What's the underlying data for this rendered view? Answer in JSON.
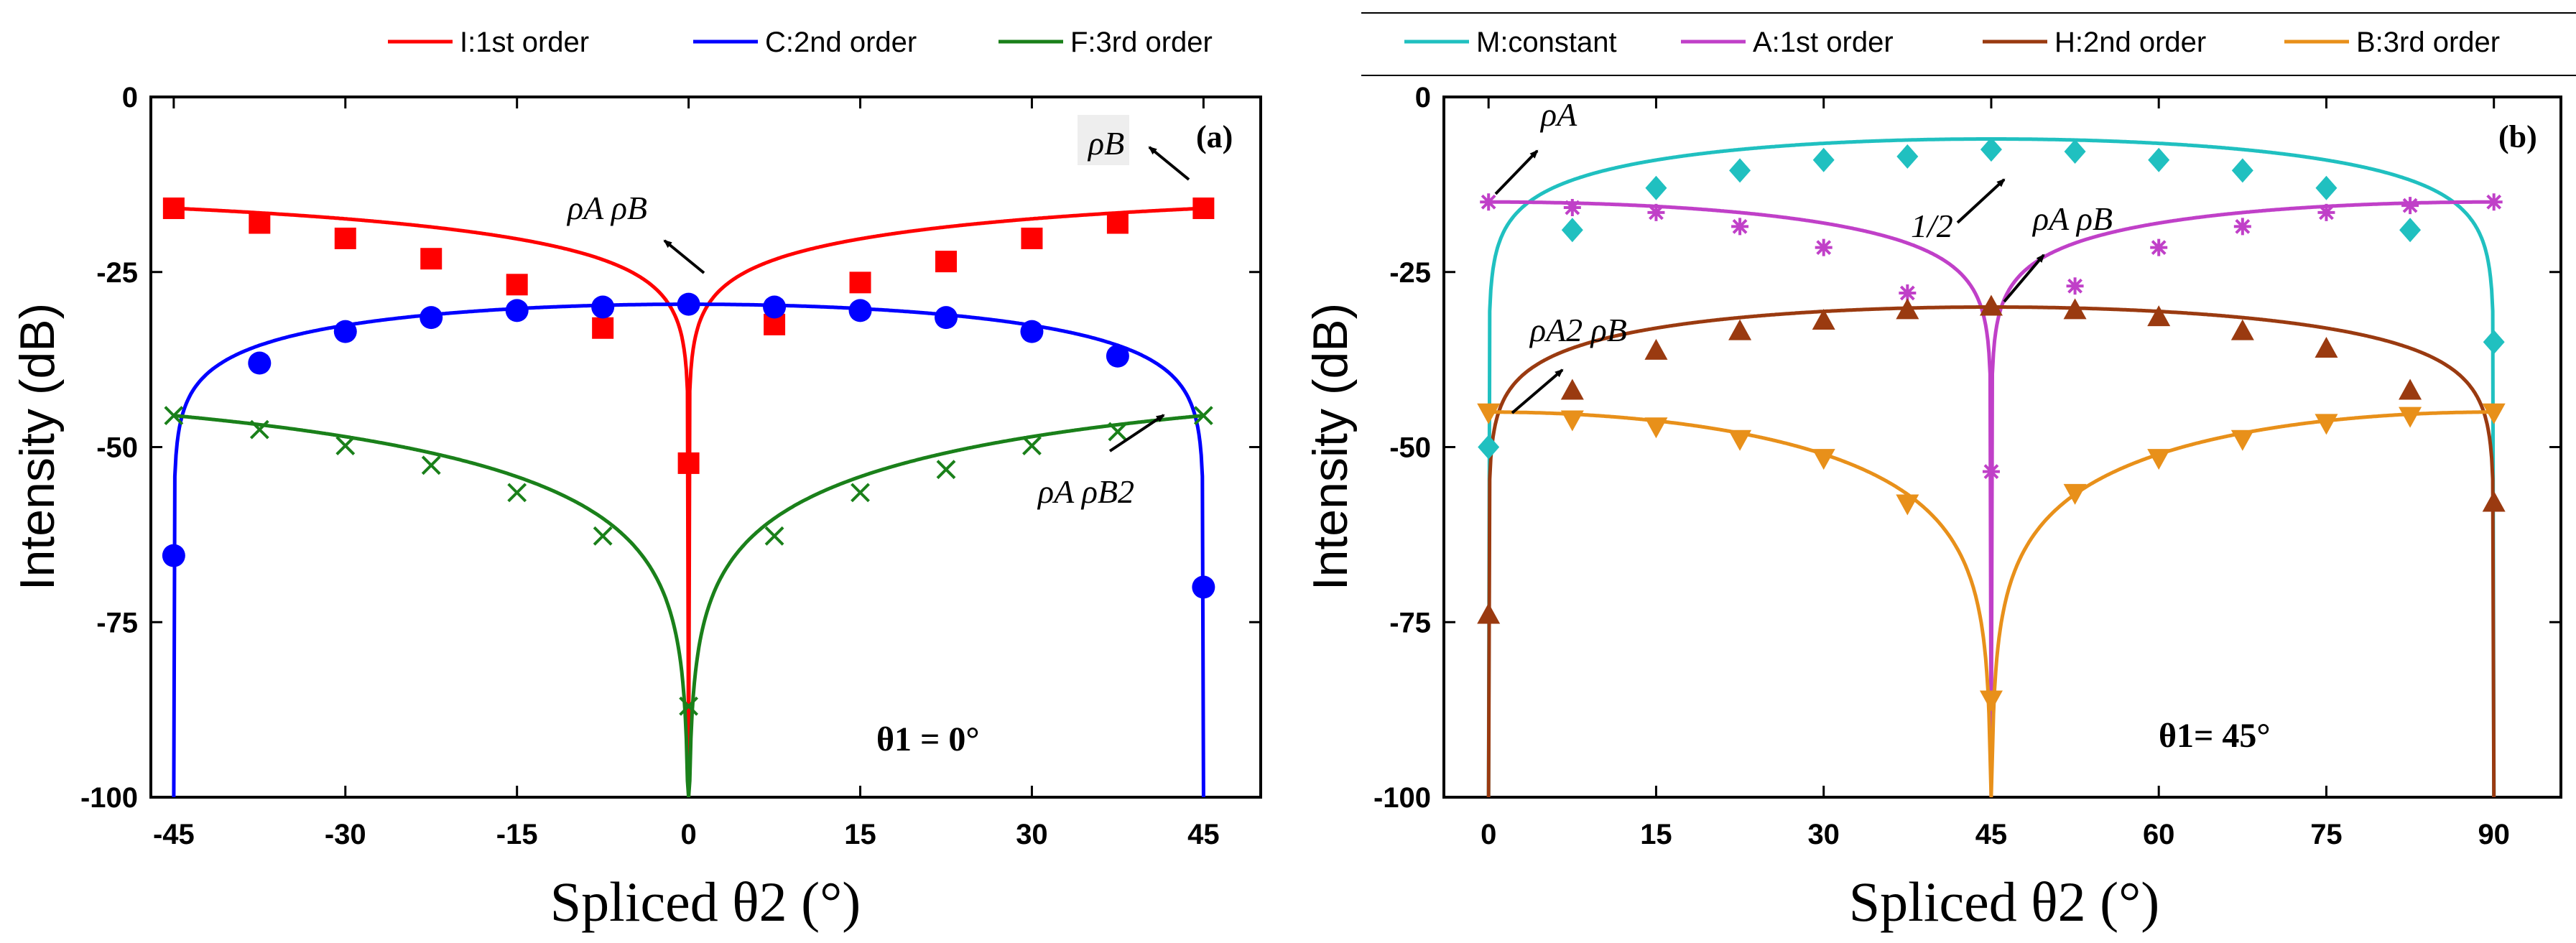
{
  "chart_data": [
    {
      "panel": "(a)",
      "type": "line",
      "xlabel": "Spliced θ2 (°)",
      "ylabel": "Intensity (dB)",
      "xlim": [
        -47,
        50
      ],
      "ylim": [
        -100,
        0
      ],
      "xticks": [
        "-45",
        "-30",
        "-15",
        "0",
        "15",
        "30",
        "45"
      ],
      "yticks": [
        "0",
        "-25",
        "-50",
        "-75",
        "-100"
      ],
      "xtick_values": [
        -45,
        -30,
        -15,
        0,
        15,
        30,
        45
      ],
      "ytick_values": [
        0,
        -25,
        -50,
        -75,
        -100
      ],
      "condition": "θ1 = 0°",
      "annotations": [
        {
          "text": "ρA ρB",
          "x": 0,
          "y": -24
        },
        {
          "text": "ρB",
          "x": 40,
          "y": -8
        },
        {
          "text": "ρA ρB2",
          "x": 36,
          "y": -57
        }
      ],
      "series": [
        {
          "name": "I:1st order",
          "color": "#ff0000",
          "marker": "square",
          "func": "first",
          "x": [
            -45,
            -37.5,
            -30,
            -22.5,
            -15,
            -7.5,
            0,
            7.5,
            15,
            22.5,
            30,
            37.5,
            45
          ],
          "values": [
            -15.9,
            -18,
            -20.2,
            -23.1,
            -26.8,
            -33,
            -52.3,
            -32.5,
            -26.5,
            -23.5,
            -20.2,
            -18,
            -15.9
          ]
        },
        {
          "name": "C:2nd order",
          "color": "#0000ff",
          "marker": "circle",
          "func": "second",
          "x": [
            -45,
            -37.5,
            -30,
            -22.5,
            -15,
            -7.5,
            0,
            7.5,
            15,
            22.5,
            30,
            37.5,
            45
          ],
          "values": [
            -65.5,
            -38,
            -33.5,
            -31.5,
            -30.5,
            -30,
            -29.6,
            -30,
            -30.5,
            -31.5,
            -33.5,
            -37,
            -70
          ]
        },
        {
          "name": "F:3rd order",
          "color": "#1a801a",
          "marker": "x",
          "func": "third",
          "x": [
            -45,
            -37.5,
            -30,
            -22.5,
            -15,
            -7.5,
            0,
            7.5,
            15,
            22.5,
            30,
            37.5,
            45
          ],
          "values": [
            -45.5,
            -47.5,
            -49.8,
            -52.6,
            -56.5,
            -62.7,
            -87,
            -62.7,
            -56.5,
            -53.2,
            -49.8,
            -47.8,
            -45.5
          ]
        }
      ]
    },
    {
      "panel": "(b)",
      "type": "line",
      "xlabel": "Spliced θ2 (°)",
      "ylabel": "Intensity (dB)",
      "xlim": [
        -4,
        96
      ],
      "ylim": [
        -100,
        0
      ],
      "xticks": [
        "0",
        "15",
        "30",
        "45",
        "60",
        "75",
        "90"
      ],
      "yticks": [
        "0",
        "-25",
        "-50",
        "-75",
        "-100"
      ],
      "xtick_values": [
        0,
        15,
        30,
        45,
        60,
        75,
        90
      ],
      "ytick_values": [
        0,
        -25,
        -50,
        -75,
        -100
      ],
      "condition": "θ1= 45°",
      "annotations": [
        {
          "text": "ρA",
          "x": 5,
          "y": -5
        },
        {
          "text": "1/2",
          "x": 38,
          "y": -15
        },
        {
          "text": "ρA ρB",
          "x": 49,
          "y": -20
        },
        {
          "text": "ρA2 ρB",
          "x": 3,
          "y": -37
        }
      ],
      "series": [
        {
          "name": "M:constant",
          "color": "#20c0c0",
          "marker": "diamond",
          "func": "constant",
          "x": [
            0,
            7.5,
            15,
            22.5,
            30,
            37.5,
            45,
            52.5,
            60,
            67.5,
            75,
            82.5,
            90
          ],
          "values": [
            -50,
            -19,
            -13,
            -10.5,
            -9,
            -8.5,
            -7.5,
            -7.8,
            -9,
            -10.5,
            -13,
            -19,
            -35
          ]
        },
        {
          "name": "A:1st order",
          "color": "#c040c8",
          "marker": "asterisk",
          "func": "first",
          "x": [
            0,
            7.5,
            15,
            22.5,
            30,
            37.5,
            45,
            52.5,
            60,
            67.5,
            75,
            82.5,
            90
          ],
          "values": [
            -15,
            -15.8,
            -16.5,
            -18.5,
            -21.5,
            -28,
            -53.5,
            -27,
            -21.5,
            -18.5,
            -16.5,
            -15.5,
            -15
          ]
        },
        {
          "name": "H:2nd order",
          "color": "#9a3a10",
          "marker": "triangle-up",
          "func": "second",
          "x": [
            0,
            7.5,
            15,
            22.5,
            30,
            37.5,
            45,
            52.5,
            60,
            67.5,
            75,
            82.5,
            90
          ],
          "values": [
            -74,
            -42,
            -36.3,
            -33.5,
            -32,
            -30.5,
            -30,
            -30.5,
            -31.5,
            -33.5,
            -36,
            -42,
            -58
          ]
        },
        {
          "name": "B:3rd order",
          "color": "#e8901a",
          "marker": "triangle-down",
          "func": "third",
          "x": [
            0,
            7.5,
            15,
            22.5,
            30,
            37.5,
            45,
            52.5,
            60,
            67.5,
            75,
            82.5,
            90
          ],
          "values": [
            -45,
            -46,
            -47,
            -48.8,
            -51.5,
            -58,
            -86,
            -56.5,
            -51.5,
            -48.8,
            -46.5,
            -45.5,
            -45
          ]
        }
      ]
    }
  ]
}
